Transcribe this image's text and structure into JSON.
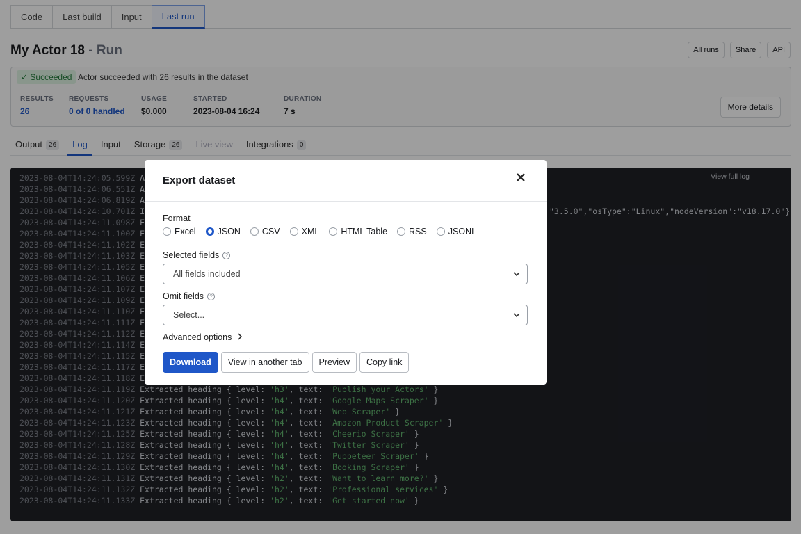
{
  "tabs": [
    "Code",
    "Last build",
    "Input",
    "Last run"
  ],
  "title": "My Actor 18",
  "title_suffix": "- Run",
  "header_buttons": [
    "All runs",
    "Share",
    "API"
  ],
  "status": {
    "badge": "Succeeded",
    "message": "Actor succeeded with 26 results in the dataset"
  },
  "stats": [
    {
      "label": "RESULTS",
      "value": "26"
    },
    {
      "label": "REQUESTS",
      "value": "0 of 0 handled"
    },
    {
      "label": "USAGE",
      "value": "$0.000"
    },
    {
      "label": "STARTED",
      "value": "2023-08-04 16:24"
    },
    {
      "label": "DURATION",
      "value": "7 s"
    }
  ],
  "more_details": "More details",
  "subtabs": [
    {
      "label": "Output",
      "count": "26"
    },
    {
      "label": "Log"
    },
    {
      "label": "Input"
    },
    {
      "label": "Storage",
      "count": "26"
    },
    {
      "label": "Live view"
    },
    {
      "label": "Integrations",
      "count": "0"
    }
  ],
  "log": {
    "view_full": "View full log",
    "tail": "\"3.5.0\",\"osType\":\"Linux\",\"nodeVersion\":\"v18.17.0\"}",
    "lines": [
      {
        "time": "2023-08-04T14:24:05.599Z",
        "parts": [
          "AC"
        ]
      },
      {
        "time": "2023-08-04T14:24:06.551Z",
        "parts": [
          "AC"
        ]
      },
      {
        "time": "2023-08-04T14:24:06.819Z",
        "parts": [
          "AC"
        ]
      },
      {
        "time": "2023-08-04T14:24:10.701Z",
        "parts": [
          "In"
        ]
      },
      {
        "time": "2023-08-04T14:24:11.098Z",
        "parts": [
          "Ex"
        ]
      },
      {
        "time": "2023-08-04T14:24:11.100Z",
        "parts": [
          "Ex"
        ]
      },
      {
        "time": "2023-08-04T14:24:11.102Z",
        "parts": [
          "Ex"
        ]
      },
      {
        "time": "2023-08-04T14:24:11.103Z",
        "parts": [
          "Ex"
        ]
      },
      {
        "time": "2023-08-04T14:24:11.105Z",
        "parts": [
          "Ex"
        ]
      },
      {
        "time": "2023-08-04T14:24:11.106Z",
        "parts": [
          "Ex"
        ]
      },
      {
        "time": "2023-08-04T14:24:11.107Z",
        "parts": [
          "Ex"
        ]
      },
      {
        "time": "2023-08-04T14:24:11.109Z",
        "parts": [
          "Ex"
        ]
      },
      {
        "time": "2023-08-04T14:24:11.110Z",
        "parts": [
          "Ex"
        ]
      },
      {
        "time": "2023-08-04T14:24:11.111Z",
        "parts": [
          "Ex"
        ]
      },
      {
        "time": "2023-08-04T14:24:11.112Z",
        "parts": [
          "Ex"
        ]
      },
      {
        "time": "2023-08-04T14:24:11.114Z",
        "parts": [
          "Ex"
        ]
      },
      {
        "time": "2023-08-04T14:24:11.115Z",
        "parts": [
          "Ex"
        ]
      },
      {
        "time": "2023-08-04T14:24:11.117Z",
        "parts": [
          "Ex"
        ]
      },
      {
        "time": "2023-08-04T14:24:11.118Z",
        "parts": [
          "Ex"
        ]
      },
      {
        "time": "2023-08-04T14:24:11.119Z",
        "parts": [
          "Extracted heading { level: ",
          "'h3'",
          ", text: ",
          "'Publish your Actors'",
          " }"
        ]
      },
      {
        "time": "2023-08-04T14:24:11.120Z",
        "parts": [
          "Extracted heading { level: ",
          "'h4'",
          ", text: ",
          "'Google Maps Scraper'",
          " }"
        ]
      },
      {
        "time": "2023-08-04T14:24:11.121Z",
        "parts": [
          "Extracted heading { level: ",
          "'h4'",
          ", text: ",
          "'Web Scraper'",
          " }"
        ]
      },
      {
        "time": "2023-08-04T14:24:11.123Z",
        "parts": [
          "Extracted heading { level: ",
          "'h4'",
          ", text: ",
          "'Amazon Product Scraper'",
          " }"
        ]
      },
      {
        "time": "2023-08-04T14:24:11.125Z",
        "parts": [
          "Extracted heading { level: ",
          "'h4'",
          ", text: ",
          "'Cheerio Scraper'",
          " }"
        ]
      },
      {
        "time": "2023-08-04T14:24:11.128Z",
        "parts": [
          "Extracted heading { level: ",
          "'h4'",
          ", text: ",
          "'Twitter Scraper'",
          " }"
        ]
      },
      {
        "time": "2023-08-04T14:24:11.129Z",
        "parts": [
          "Extracted heading { level: ",
          "'h4'",
          ", text: ",
          "'Puppeteer Scraper'",
          " }"
        ]
      },
      {
        "time": "2023-08-04T14:24:11.130Z",
        "parts": [
          "Extracted heading { level: ",
          "'h4'",
          ", text: ",
          "'Booking Scraper'",
          " }"
        ]
      },
      {
        "time": "2023-08-04T14:24:11.131Z",
        "parts": [
          "Extracted heading { level: ",
          "'h2'",
          ", text: ",
          "'Want to learn more?'",
          " }"
        ]
      },
      {
        "time": "2023-08-04T14:24:11.132Z",
        "parts": [
          "Extracted heading { level: ",
          "'h2'",
          ", text: ",
          "'Professional services'",
          " }"
        ]
      },
      {
        "time": "2023-08-04T14:24:11.133Z",
        "parts": [
          "Extracted heading { level: ",
          "'h2'",
          ", text: ",
          "'Get started now'",
          " }"
        ]
      }
    ]
  },
  "modal": {
    "title": "Export dataset",
    "format_label": "Format",
    "formats": [
      "Excel",
      "JSON",
      "CSV",
      "XML",
      "HTML Table",
      "RSS",
      "JSONL"
    ],
    "selected_format": 1,
    "selected_fields_label": "Selected fields",
    "selected_fields_value": "All fields included",
    "omit_fields_label": "Omit fields",
    "omit_fields_value": "Select...",
    "advanced": "Advanced options",
    "buttons": [
      "Download",
      "View in another tab",
      "Preview",
      "Copy link"
    ]
  }
}
